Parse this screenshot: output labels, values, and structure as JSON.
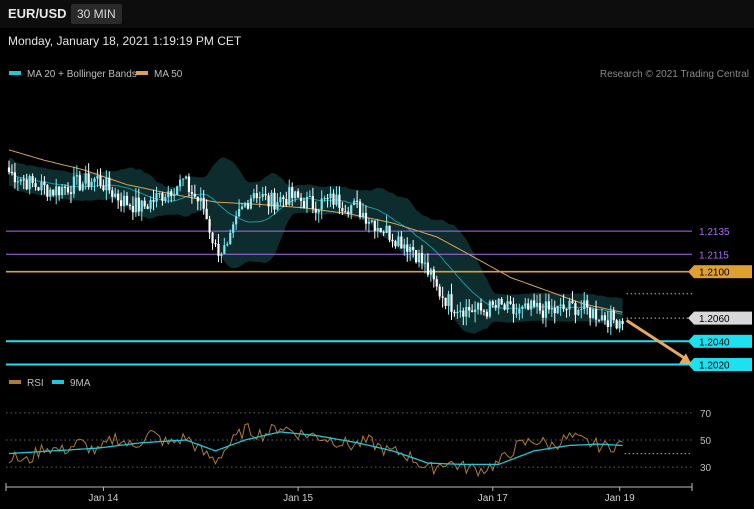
{
  "header": {
    "pair": "EUR/USD",
    "timeframe": "30 MIN",
    "datetime": "Monday, January 18, 2021 1:19:19 PM CET",
    "credit": "Research © 2021 Trading Central"
  },
  "colors": {
    "background": "#000000",
    "bollinger": "#1ec8d8",
    "bollinger_fill": "#0f3436",
    "ma50": "#d9a25a",
    "bull": "#7fe8ef",
    "bear": "#ffffff",
    "purple_level": "#a86df0",
    "orange_level": "#e0a030",
    "cyan_level": "#1de0f0",
    "current_price": "#d8d8d8",
    "arrow": "#e8a860",
    "rsi": "#b07a3a",
    "rsi_ma": "#1ec8d8"
  },
  "chart_data": [
    {
      "type": "candlestick",
      "legend": [
        {
          "name": "MA 20 + Bollinger Bands",
          "color": "#1ec8d8"
        },
        {
          "name": "MA 50",
          "color": "#d9a25a"
        }
      ],
      "x_ticks": [
        {
          "label": "Jan 14",
          "index": 32
        },
        {
          "label": "Jan 15",
          "index": 98
        },
        {
          "label": "Jan 17",
          "index": 164
        },
        {
          "label": "Jan 19",
          "index": 207
        }
      ],
      "ylim": [
        1.2017,
        1.2254
      ],
      "levels": [
        {
          "value": 1.2135,
          "label": "1.2135",
          "kind": "purple"
        },
        {
          "value": 1.2115,
          "label": "1.2115",
          "kind": "purple"
        },
        {
          "value": 1.21,
          "label": "1.2100",
          "kind": "orange"
        },
        {
          "value": 1.206,
          "label": "1.2060",
          "kind": "current"
        },
        {
          "value": 1.204,
          "label": "1.2040",
          "kind": "cyan"
        },
        {
          "value": 1.202,
          "label": "1.2020",
          "kind": "cyan"
        }
      ],
      "close_anchors": [
        [
          0,
          1.2186
        ],
        [
          8,
          1.2175
        ],
        [
          15,
          1.217
        ],
        [
          22,
          1.2175
        ],
        [
          30,
          1.218
        ],
        [
          38,
          1.2162
        ],
        [
          45,
          1.2155
        ],
        [
          52,
          1.2167
        ],
        [
          59,
          1.2178
        ],
        [
          66,
          1.2155
        ],
        [
          70,
          1.212
        ],
        [
          74,
          1.2118
        ],
        [
          78,
          1.215
        ],
        [
          83,
          1.217
        ],
        [
          88,
          1.216
        ],
        [
          95,
          1.2165
        ],
        [
          103,
          1.2158
        ],
        [
          110,
          1.2162
        ],
        [
          118,
          1.2155
        ],
        [
          125,
          1.214
        ],
        [
          131,
          1.213
        ],
        [
          137,
          1.212
        ],
        [
          142,
          1.21
        ],
        [
          145,
          1.2085
        ],
        [
          150,
          1.2072
        ],
        [
          155,
          1.2068
        ],
        [
          160,
          1.2066
        ],
        [
          166,
          1.207
        ],
        [
          172,
          1.2064
        ],
        [
          178,
          1.2068
        ],
        [
          185,
          1.2066
        ],
        [
          192,
          1.207
        ],
        [
          199,
          1.2064
        ],
        [
          205,
          1.2058
        ],
        [
          208,
          1.206
        ]
      ],
      "ma50_anchors": [
        [
          0,
          1.2205
        ],
        [
          12,
          1.2196
        ],
        [
          25,
          1.2188
        ],
        [
          40,
          1.2175
        ],
        [
          55,
          1.2167
        ],
        [
          70,
          1.216
        ],
        [
          85,
          1.2158
        ],
        [
          100,
          1.2155
        ],
        [
          115,
          1.215
        ],
        [
          130,
          1.2142
        ],
        [
          145,
          1.213
        ],
        [
          158,
          1.2112
        ],
        [
          170,
          1.2095
        ],
        [
          182,
          1.2084
        ],
        [
          195,
          1.2072
        ],
        [
          208,
          1.2065
        ]
      ],
      "arrow": {
        "from": [
          208,
          1.2058
        ],
        "to": [
          226,
          1.202
        ]
      }
    },
    {
      "type": "line",
      "legend": [
        {
          "name": "RSI",
          "color": "#b07a3a"
        },
        {
          "name": "9MA",
          "color": "#1ec8d8"
        }
      ],
      "ylim": [
        22,
        78
      ],
      "y_ticks": [
        70,
        50,
        30
      ],
      "rsi_anchors": [
        [
          0,
          38
        ],
        [
          6,
          34
        ],
        [
          12,
          45
        ],
        [
          18,
          42
        ],
        [
          24,
          48
        ],
        [
          30,
          41
        ],
        [
          36,
          52
        ],
        [
          42,
          45
        ],
        [
          48,
          55
        ],
        [
          54,
          47
        ],
        [
          60,
          52
        ],
        [
          66,
          40
        ],
        [
          70,
          35
        ],
        [
          74,
          45
        ],
        [
          80,
          58
        ],
        [
          86,
          54
        ],
        [
          92,
          60
        ],
        [
          98,
          55
        ],
        [
          104,
          53
        ],
        [
          110,
          50
        ],
        [
          116,
          46
        ],
        [
          122,
          49
        ],
        [
          128,
          42
        ],
        [
          134,
          40
        ],
        [
          138,
          35
        ],
        [
          142,
          28
        ],
        [
          148,
          34
        ],
        [
          154,
          30
        ],
        [
          160,
          28
        ],
        [
          166,
          33
        ],
        [
          172,
          45
        ],
        [
          178,
          50
        ],
        [
          184,
          46
        ],
        [
          190,
          52
        ],
        [
          196,
          48
        ],
        [
          202,
          45
        ],
        [
          208,
          47
        ]
      ],
      "ma9_anchors": [
        [
          0,
          40
        ],
        [
          15,
          42
        ],
        [
          30,
          44
        ],
        [
          45,
          48
        ],
        [
          60,
          50
        ],
        [
          70,
          42
        ],
        [
          80,
          50
        ],
        [
          92,
          56
        ],
        [
          105,
          53
        ],
        [
          118,
          48
        ],
        [
          130,
          42
        ],
        [
          142,
          33
        ],
        [
          154,
          32
        ],
        [
          166,
          32
        ],
        [
          178,
          42
        ],
        [
          190,
          46
        ],
        [
          200,
          47
        ],
        [
          208,
          46
        ]
      ]
    }
  ]
}
